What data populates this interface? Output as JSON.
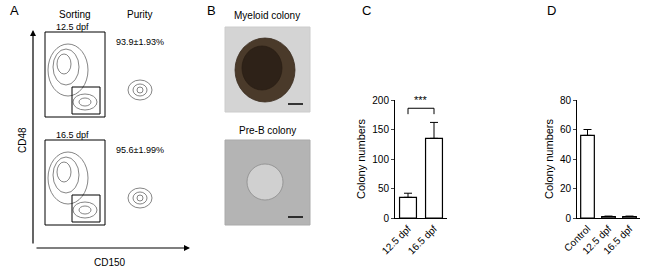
{
  "panels": {
    "A": {
      "label": "A",
      "columns": [
        "Sorting",
        "Purity"
      ],
      "rows": [
        {
          "label": "12.5 dpf",
          "purity": "93.9±1.93%"
        },
        {
          "label": "16.5 dpf",
          "purity": "95.6±1.99%"
        }
      ],
      "x_axis_label": "CD150",
      "y_axis_label": "CD48"
    },
    "B": {
      "label": "B",
      "images": [
        "Myeloid colony",
        "Pre-B colony"
      ]
    }
  },
  "chart_data": [
    {
      "title": "C",
      "type": "bar",
      "categories": [
        "12.5 dpf",
        "16.5 dpf"
      ],
      "values": [
        35,
        135
      ],
      "errors": [
        7,
        27
      ],
      "ylabel": "Colony numbers",
      "ylim": [
        0,
        200
      ],
      "yticks": [
        0,
        50,
        100,
        150,
        200
      ],
      "color": "#ffffff",
      "annotations": [
        "***"
      ]
    },
    {
      "title": "D",
      "type": "bar",
      "categories": [
        "Control",
        "12.5 dpf",
        "16.5 dpf"
      ],
      "values": [
        56,
        1,
        1
      ],
      "errors": [
        4,
        0.3,
        0.3
      ],
      "ylabel": "Colony numbers",
      "ylim": [
        0,
        80
      ],
      "yticks": [
        0,
        20,
        40,
        60,
        80
      ],
      "color": "#ffffff"
    }
  ]
}
